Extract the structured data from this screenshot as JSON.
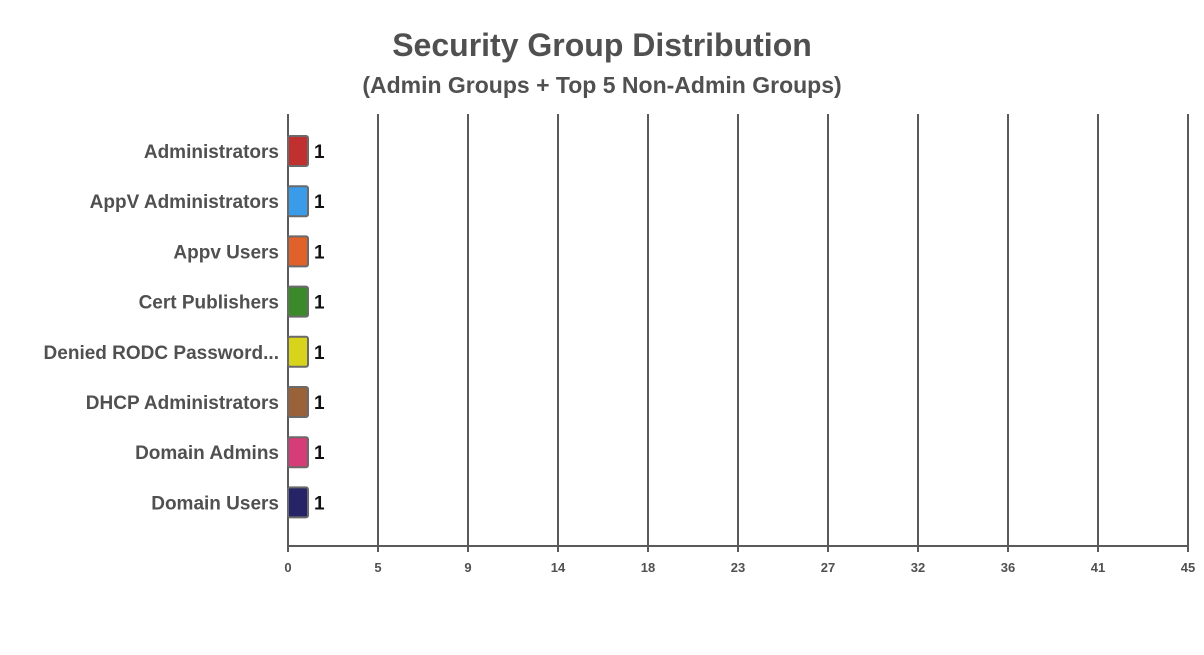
{
  "chart_data": {
    "type": "bar",
    "orientation": "horizontal",
    "title": "Security Group Distribution",
    "subtitle": "(Admin Groups + Top 5 Non-Admin Groups)",
    "xlabel": "",
    "ylabel": "",
    "categories": [
      "Administrators",
      "AppV Administrators",
      "Appv Users",
      "Cert Publishers",
      "Denied RODC Password...",
      "DHCP Administrators",
      "Domain Admins",
      "Domain Users"
    ],
    "values": [
      1,
      1,
      1,
      1,
      1,
      1,
      1,
      1
    ],
    "colors": [
      "#c0302e",
      "#3a9be8",
      "#e0622a",
      "#3b8a2a",
      "#d8d41c",
      "#9a6238",
      "#d63c78",
      "#242466"
    ],
    "x_ticks": [
      "0",
      "5",
      "9",
      "14",
      "18",
      "23",
      "27",
      "32",
      "36",
      "41",
      "45"
    ],
    "xlim": [
      0,
      45
    ],
    "grid": true,
    "legend": "none"
  }
}
